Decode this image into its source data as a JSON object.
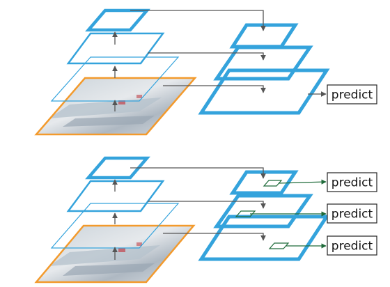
{
  "labels": {
    "top_predict": "predict",
    "bottom_predict_1": "predict",
    "bottom_predict_2": "predict",
    "bottom_predict_3": "predict"
  },
  "colors": {
    "pyramid_blue": "#34a3dc",
    "image_border_orange": "#f39a2c",
    "arrow_gray": "#555555",
    "arrow_green": "#1f6b3a",
    "box_border": "#222222"
  }
}
